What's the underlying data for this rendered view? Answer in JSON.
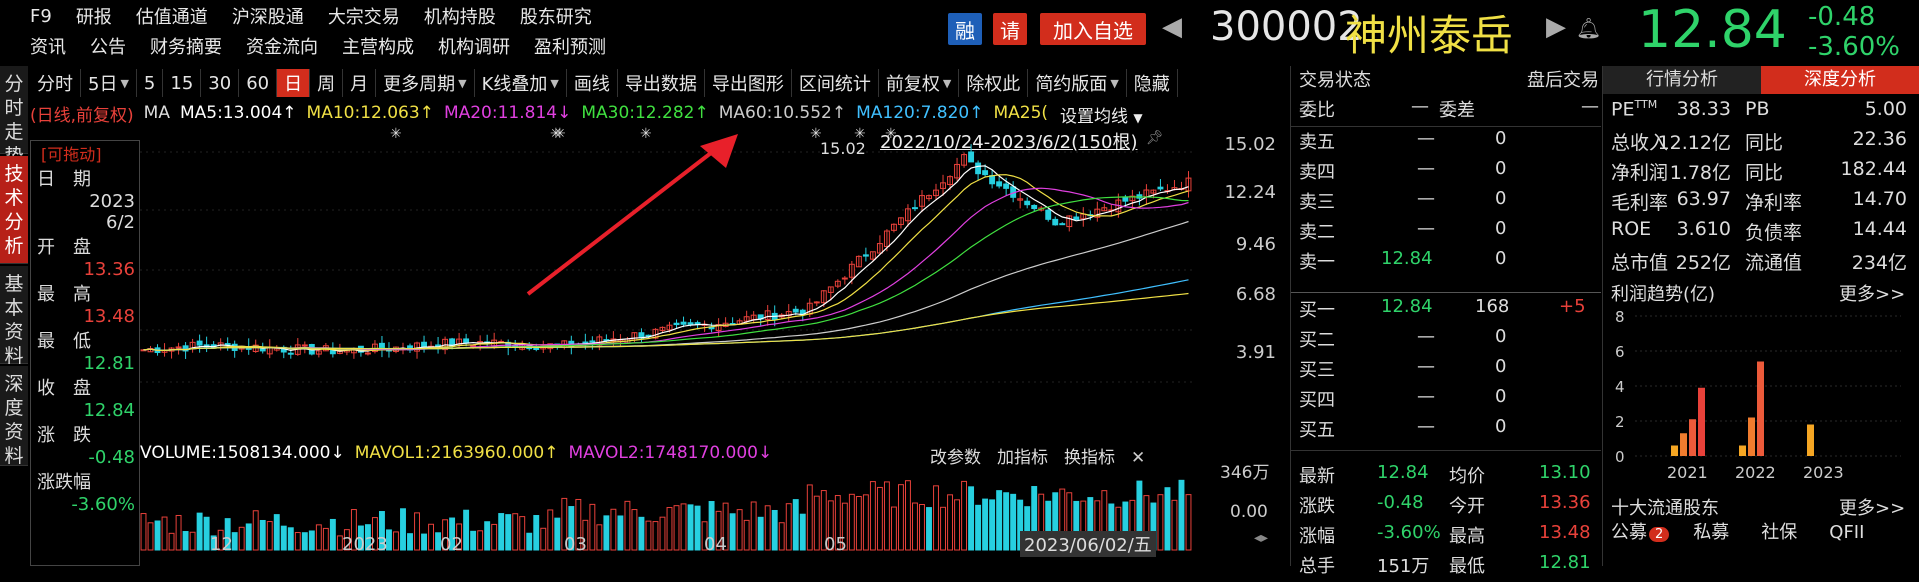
{
  "top_menu": {
    "row1": [
      "F9",
      "研报",
      "估值通道",
      "沪深股通",
      "大宗交易",
      "机构持股",
      "股东研究"
    ],
    "row2": [
      "资讯",
      "公告",
      "财务摘要",
      "资金流向",
      "主营构成",
      "机构调研",
      "盈利预测"
    ]
  },
  "header": {
    "badge_rong": "融",
    "badge_ce": "请",
    "add_watchlist": "加入自选",
    "code": "300002",
    "name": "神州泰岳",
    "price": "12.84",
    "change_abs": "-0.48",
    "change_pct": "-3.60%",
    "colors": {
      "down": "#2fd36a",
      "up": "#e8413a",
      "name": "#f0e045"
    }
  },
  "left_tabs": [
    {
      "label": "分时走势",
      "active": false
    },
    {
      "label": "技术分析",
      "active": true
    },
    {
      "label": "基本资料",
      "active": false
    },
    {
      "label": "深度资料",
      "active": false
    }
  ],
  "toolbar": {
    "items": [
      {
        "label": "分时",
        "dropdown": false
      },
      {
        "label": "5日",
        "dropdown": true
      },
      {
        "label": "5",
        "dropdown": false
      },
      {
        "label": "15",
        "dropdown": false
      },
      {
        "label": "30",
        "dropdown": false
      },
      {
        "label": "60",
        "dropdown": false
      },
      {
        "label": "日",
        "dropdown": false,
        "active": true
      },
      {
        "label": "周",
        "dropdown": false
      },
      {
        "label": "月",
        "dropdown": false
      },
      {
        "label": "更多周期",
        "dropdown": true
      },
      {
        "label": "K线叠加",
        "dropdown": true
      },
      {
        "label": "画线",
        "dropdown": false
      },
      {
        "label": "导出数据",
        "dropdown": false
      },
      {
        "label": "导出图形",
        "dropdown": false
      },
      {
        "label": "区间统计",
        "dropdown": false
      },
      {
        "label": "前复权",
        "dropdown": true
      },
      {
        "label": "除权此",
        "dropdown": false
      },
      {
        "label": "简约版面",
        "dropdown": true
      },
      {
        "label": "隐藏",
        "dropdown": false
      }
    ]
  },
  "ma_legend": {
    "mode": "(日线,前复权)",
    "ma": "MA",
    "items": [
      {
        "text": "MA5:13.004↑",
        "color": "#ffffff"
      },
      {
        "text": "MA10:12.063↑",
        "color": "#f0e045"
      },
      {
        "text": "MA20:11.814↓",
        "color": "#e040e0"
      },
      {
        "text": "MA30:12.282↑",
        "color": "#40e040"
      },
      {
        "text": "MA60:10.552↑",
        "color": "#cccccc"
      },
      {
        "text": "MA120:7.820↑",
        "color": "#40c0ff"
      },
      {
        "text": "MA25(",
        "color": "#f0e045"
      }
    ],
    "settings": "设置均线",
    "range": "2022/10/24-2023/6/2(150根)"
  },
  "info_panel": {
    "header": "[可拖动]",
    "rows": [
      {
        "label": "日　期",
        "value": "2023"
      },
      {
        "label": "",
        "value": "6/2"
      },
      {
        "label": "开　盘",
        "value": "13.36",
        "color": "#e8413a"
      },
      {
        "label": "最　高",
        "value": "13.48",
        "color": "#e8413a"
      },
      {
        "label": "最　低",
        "value": "12.81",
        "color": "#2fd36a"
      },
      {
        "label": "收　盘",
        "value": "12.84",
        "color": "#2fd36a"
      },
      {
        "label": "涨　跌",
        "value": "-0.48",
        "color": "#2fd36a"
      },
      {
        "label": "涨跌幅",
        "value": "-3.60%",
        "color": "#2fd36a"
      }
    ]
  },
  "y_axis": [
    "15.02",
    "12.24",
    "9.46",
    "6.68",
    "3.91"
  ],
  "high_marker": "15.02",
  "volume": {
    "label": "VOLUME:1508134.000↓",
    "mavol1": "MAVOL1:2163960.000↑",
    "mavol2": "MAVOL2:1748170.000↓",
    "buttons": [
      "改参数",
      "加指标",
      "换指标"
    ],
    "y_labels": [
      "346万",
      "0.00"
    ]
  },
  "x_axis": [
    "12",
    "2023",
    "02",
    "03",
    "04",
    "05"
  ],
  "cursor_date": "2023/06/02/五",
  "orderbook": {
    "title": "交易状态",
    "after_hours": "盘后交易",
    "weibi": "委比",
    "weibi_val": "—",
    "weicha": "委差",
    "weicha_val": "—",
    "sell": [
      {
        "label": "卖五",
        "price": "—",
        "vol": "0"
      },
      {
        "label": "卖四",
        "price": "—",
        "vol": "0"
      },
      {
        "label": "卖三",
        "price": "—",
        "vol": "0"
      },
      {
        "label": "卖二",
        "price": "—",
        "vol": "0"
      },
      {
        "label": "卖一",
        "price": "12.84",
        "vol": "0"
      }
    ],
    "buy": [
      {
        "label": "买一",
        "price": "12.84",
        "vol": "168",
        "delta": "+5"
      },
      {
        "label": "买二",
        "price": "—",
        "vol": "0"
      },
      {
        "label": "买三",
        "price": "—",
        "vol": "0"
      },
      {
        "label": "买四",
        "price": "—",
        "vol": "0"
      },
      {
        "label": "买五",
        "price": "—",
        "vol": "0"
      }
    ],
    "stats": [
      {
        "l1": "最新",
        "v1": "12.84",
        "c1": "#2fd36a",
        "l2": "均价",
        "v2": "13.10",
        "c2": "#2fd36a"
      },
      {
        "l1": "涨跌",
        "v1": "-0.48",
        "c1": "#2fd36a",
        "l2": "今开",
        "v2": "13.36",
        "c2": "#e8413a"
      },
      {
        "l1": "涨幅",
        "v1": "-3.60%",
        "c1": "#2fd36a",
        "l2": "最高",
        "v2": "13.48",
        "c2": "#e8413a"
      },
      {
        "l1": "总手",
        "v1": "151万",
        "c1": "#dddddd",
        "l2": "最低",
        "v2": "12.81",
        "c2": "#2fd36a"
      }
    ]
  },
  "right_panel": {
    "tab1": "行情分析",
    "tab2": "深度分析",
    "fin": [
      {
        "l1": "PE",
        "sup": "TTM",
        "v1": "38.33",
        "l2": "PB",
        "v2": "5.00"
      },
      {
        "l1": "总收入",
        "v1": "12.12亿",
        "l2": "同比",
        "v2": "22.36"
      },
      {
        "l1": "净利润",
        "v1": "1.78亿",
        "l2": "同比",
        "v2": "182.44"
      },
      {
        "l1": "毛利率",
        "v1": "63.97",
        "l2": "净利率",
        "v2": "14.70"
      },
      {
        "l1": "ROE",
        "v1": "3.610",
        "l2": "负债率",
        "v2": "14.44"
      },
      {
        "l1": "总市值",
        "v1": "252亿",
        "l2": "流通值",
        "v2": "234亿"
      }
    ],
    "profit_title": "利润趋势(亿)",
    "more": "更多>>",
    "profit_chart": {
      "y_ticks": [
        "8",
        "6",
        "4",
        "2",
        "0"
      ],
      "years": [
        "2021",
        "2022",
        "2023"
      ],
      "bars": {
        "2021": [
          0.6,
          1.3,
          2.1,
          3.9
        ],
        "2022": [
          0.6,
          2.2,
          5.4
        ],
        "2023": [
          1.8
        ]
      }
    },
    "holders_title": "十大流通股东",
    "holders_more": "更多>>",
    "holder_tabs": [
      "公募",
      "私募",
      "社保",
      "QFII"
    ],
    "holder_badge": "2"
  }
}
